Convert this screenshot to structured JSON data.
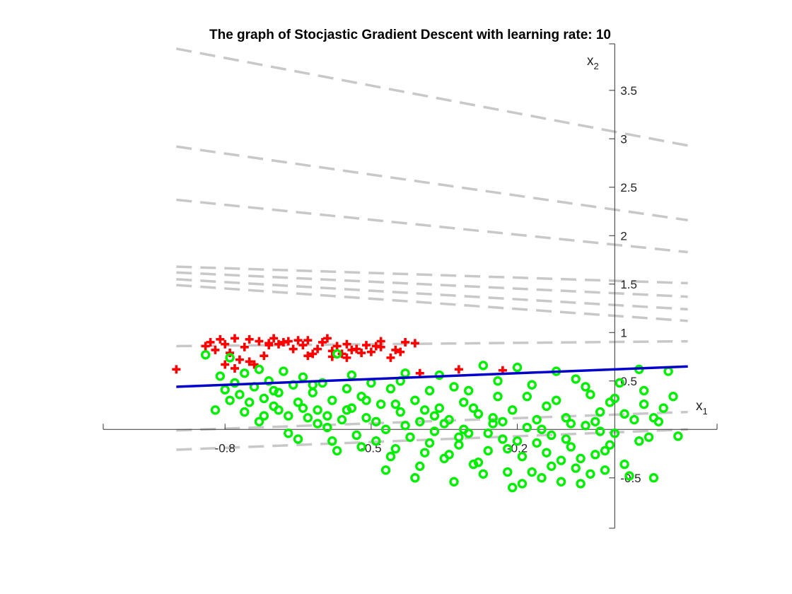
{
  "chart_data": {
    "type": "scatter",
    "title": "The graph of Stocjastic Gradient Descent with learning rate: 10",
    "xlabel": "x",
    "xlabel_sub": "1",
    "ylabel": "x",
    "ylabel_sub": "2",
    "xlim": [
      -1.05,
      0.21
    ],
    "ylim": [
      -1.02,
      3.98
    ],
    "x_ticks": [
      -0.8,
      -0.5,
      -0.2
    ],
    "x_tick_labels": [
      "-0.8",
      "-0.5",
      "-0.2"
    ],
    "y_ticks": [
      -0.5,
      0.5,
      1,
      1.5,
      2,
      2.5,
      3,
      3.5
    ],
    "y_tick_labels": [
      "-0.5",
      "0.5",
      "1",
      "1.5",
      "2",
      "2.5",
      "3",
      "3.5"
    ],
    "grid": false,
    "axes_origin": [
      0,
      0
    ],
    "colors": {
      "positive": "#ff0000",
      "negative": "#00ee00",
      "final_boundary": "#0000cc",
      "intermediate_boundaries": "#c8c8c8"
    },
    "intermediate_boundaries": [
      {
        "x": [
          -0.9,
          0.15
        ],
        "y": [
          3.93,
          2.93
        ]
      },
      {
        "x": [
          -0.9,
          0.15
        ],
        "y": [
          2.92,
          2.16
        ]
      },
      {
        "x": [
          -0.9,
          0.15
        ],
        "y": [
          2.37,
          1.83
        ]
      },
      {
        "x": [
          -0.9,
          0.15
        ],
        "y": [
          1.68,
          1.51
        ]
      },
      {
        "x": [
          -0.9,
          0.15
        ],
        "y": [
          1.62,
          1.37
        ]
      },
      {
        "x": [
          -0.9,
          0.15
        ],
        "y": [
          1.55,
          1.24
        ]
      },
      {
        "x": [
          -0.9,
          0.15
        ],
        "y": [
          1.49,
          1.12
        ]
      },
      {
        "x": [
          -0.9,
          0.15
        ],
        "y": [
          0.86,
          0.91
        ]
      },
      {
        "x": [
          -0.9,
          0.15
        ],
        "y": [
          -0.01,
          0.18
        ]
      },
      {
        "x": [
          -0.9,
          0.15
        ],
        "y": [
          -0.21,
          0.0
        ]
      }
    ],
    "final_boundary": {
      "x": [
        -0.9,
        0.15
      ],
      "y": [
        0.44,
        0.65
      ]
    },
    "series": [
      {
        "marker": "plus",
        "color": "#ff0000",
        "points": [
          [
            -0.9,
            0.62
          ],
          [
            -0.84,
            0.86
          ],
          [
            -0.83,
            0.9
          ],
          [
            -0.82,
            0.82
          ],
          [
            -0.81,
            0.93
          ],
          [
            -0.8,
            0.88
          ],
          [
            -0.79,
            0.79
          ],
          [
            -0.78,
            0.94
          ],
          [
            -0.77,
            0.72
          ],
          [
            -0.76,
            0.85
          ],
          [
            -0.75,
            0.93
          ],
          [
            -0.74,
            0.67
          ],
          [
            -0.73,
            0.91
          ],
          [
            -0.72,
            0.76
          ],
          [
            -0.71,
            0.87
          ],
          [
            -0.7,
            0.94
          ],
          [
            -0.69,
            0.88
          ],
          [
            -0.68,
            0.9
          ],
          [
            -0.67,
            0.91
          ],
          [
            -0.66,
            0.83
          ],
          [
            -0.65,
            0.92
          ],
          [
            -0.64,
            0.87
          ],
          [
            -0.63,
            0.92
          ],
          [
            -0.62,
            0.78
          ],
          [
            -0.61,
            0.83
          ],
          [
            -0.6,
            0.9
          ],
          [
            -0.59,
            0.94
          ],
          [
            -0.58,
            0.75
          ],
          [
            -0.57,
            0.86
          ],
          [
            -0.56,
            0.78
          ],
          [
            -0.55,
            0.88
          ],
          [
            -0.54,
            0.82
          ],
          [
            -0.53,
            0.83
          ],
          [
            -0.52,
            0.79
          ],
          [
            -0.51,
            0.87
          ],
          [
            -0.5,
            0.8
          ],
          [
            -0.49,
            0.86
          ],
          [
            -0.48,
            0.91
          ],
          [
            -0.46,
            0.74
          ],
          [
            -0.45,
            0.82
          ],
          [
            -0.43,
            0.9
          ],
          [
            -0.4,
            0.58
          ],
          [
            -0.32,
            0.62
          ],
          [
            -0.23,
            0.61
          ],
          [
            -0.8,
            0.67
          ],
          [
            -0.78,
            0.63
          ],
          [
            -0.75,
            0.7
          ],
          [
            -0.71,
            0.89
          ],
          [
            -0.63,
            0.76
          ],
          [
            -0.58,
            0.81
          ],
          [
            -0.55,
            0.74
          ],
          [
            -0.48,
            0.85
          ],
          [
            -0.44,
            0.8
          ],
          [
            -0.41,
            0.89
          ]
        ]
      },
      {
        "marker": "circle",
        "color": "#00ee00",
        "points": [
          [
            -0.84,
            0.77
          ],
          [
            -0.81,
            0.55
          ],
          [
            -0.8,
            0.41
          ],
          [
            -0.79,
            0.74
          ],
          [
            -0.78,
            0.48
          ],
          [
            -0.77,
            0.36
          ],
          [
            -0.76,
            0.58
          ],
          [
            -0.75,
            0.28
          ],
          [
            -0.74,
            0.44
          ],
          [
            -0.73,
            0.62
          ],
          [
            -0.72,
            0.32
          ],
          [
            -0.71,
            0.5
          ],
          [
            -0.7,
            0.24
          ],
          [
            -0.69,
            0.38
          ],
          [
            -0.68,
            0.6
          ],
          [
            -0.67,
            0.14
          ],
          [
            -0.66,
            0.46
          ],
          [
            -0.65,
            0.28
          ],
          [
            -0.64,
            0.54
          ],
          [
            -0.63,
            0.12
          ],
          [
            -0.62,
            0.38
          ],
          [
            -0.61,
            0.2
          ],
          [
            -0.6,
            0.48
          ],
          [
            -0.59,
            0.02
          ],
          [
            -0.58,
            0.3
          ],
          [
            -0.57,
            0.78
          ],
          [
            -0.56,
            0.1
          ],
          [
            -0.55,
            0.42
          ],
          [
            -0.54,
            0.22
          ],
          [
            -0.53,
            -0.06
          ],
          [
            -0.52,
            0.34
          ],
          [
            -0.51,
            0.12
          ],
          [
            -0.5,
            0.48
          ],
          [
            -0.49,
            -0.12
          ],
          [
            -0.48,
            0.26
          ],
          [
            -0.47,
            0.0
          ],
          [
            -0.46,
            0.42
          ],
          [
            -0.45,
            -0.2
          ],
          [
            -0.44,
            0.18
          ],
          [
            -0.43,
            0.58
          ],
          [
            -0.42,
            -0.08
          ],
          [
            -0.41,
            0.3
          ],
          [
            -0.4,
            0.08
          ],
          [
            -0.39,
            -0.24
          ],
          [
            -0.38,
            0.4
          ],
          [
            -0.37,
            -0.02
          ],
          [
            -0.36,
            0.22
          ],
          [
            -0.35,
            -0.3
          ],
          [
            -0.34,
            0.1
          ],
          [
            -0.33,
            0.44
          ],
          [
            -0.32,
            -0.16
          ],
          [
            -0.31,
            0.28
          ],
          [
            -0.3,
            -0.04
          ],
          [
            -0.29,
            -0.36
          ],
          [
            -0.28,
            0.16
          ],
          [
            -0.27,
            0.66
          ],
          [
            -0.26,
            -0.22
          ],
          [
            -0.25,
            0.06
          ],
          [
            -0.24,
            0.34
          ],
          [
            -0.23,
            -0.1
          ],
          [
            -0.22,
            -0.44
          ],
          [
            -0.21,
            0.2
          ],
          [
            -0.2,
            0.64
          ],
          [
            -0.19,
            -0.28
          ],
          [
            -0.18,
            0.02
          ],
          [
            -0.17,
            0.46
          ],
          [
            -0.16,
            -0.14
          ],
          [
            -0.15,
            -0.5
          ],
          [
            -0.14,
            0.24
          ],
          [
            -0.13,
            -0.06
          ],
          [
            -0.12,
            0.6
          ],
          [
            -0.11,
            -0.32
          ],
          [
            -0.1,
            0.12
          ],
          [
            -0.09,
            -0.18
          ],
          [
            -0.08,
            0.52
          ],
          [
            -0.07,
            -0.56
          ],
          [
            -0.06,
            0.04
          ],
          [
            -0.05,
            0.36
          ],
          [
            -0.04,
            -0.26
          ],
          [
            -0.03,
            0.18
          ],
          [
            -0.02,
            -0.42
          ],
          [
            -0.01,
            0.28
          ],
          [
            0.0,
            -0.04
          ],
          [
            0.01,
            0.48
          ],
          [
            0.02,
            0.16
          ],
          [
            0.03,
            -0.48
          ],
          [
            0.04,
            0.1
          ],
          [
            0.05,
            0.62
          ],
          [
            0.06,
            0.26
          ],
          [
            0.07,
            -0.08
          ],
          [
            0.08,
            -0.5
          ],
          [
            0.09,
            0.08
          ],
          [
            0.1,
            0.22
          ],
          [
            0.11,
            0.6
          ],
          [
            0.12,
            0.34
          ],
          [
            0.13,
            -0.07
          ],
          [
            -0.79,
            0.3
          ],
          [
            -0.76,
            0.18
          ],
          [
            -0.73,
            0.08
          ],
          [
            -0.7,
            0.4
          ],
          [
            -0.67,
            -0.04
          ],
          [
            -0.64,
            0.22
          ],
          [
            -0.61,
            0.06
          ],
          [
            -0.58,
            -0.12
          ],
          [
            -0.55,
            0.2
          ],
          [
            -0.52,
            -0.18
          ],
          [
            -0.49,
            0.08
          ],
          [
            -0.46,
            -0.28
          ],
          [
            -0.43,
            0.04
          ],
          [
            -0.4,
            -0.38
          ],
          [
            -0.37,
            0.14
          ],
          [
            -0.34,
            -0.26
          ],
          [
            -0.31,
            0.0
          ],
          [
            -0.28,
            -0.34
          ],
          [
            -0.25,
            0.12
          ],
          [
            -0.22,
            -0.2
          ],
          [
            -0.19,
            -0.56
          ],
          [
            -0.16,
            0.1
          ],
          [
            -0.13,
            -0.38
          ],
          [
            -0.1,
            -0.1
          ],
          [
            -0.07,
            -0.3
          ],
          [
            -0.04,
            0.08
          ],
          [
            -0.01,
            -0.16
          ],
          [
            0.02,
            -0.36
          ],
          [
            0.05,
            -0.12
          ],
          [
            0.08,
            0.12
          ],
          [
            -0.65,
            -0.1
          ],
          [
            -0.57,
            -0.22
          ],
          [
            -0.47,
            -0.42
          ],
          [
            -0.41,
            -0.5
          ],
          [
            -0.33,
            -0.54
          ],
          [
            -0.27,
            -0.46
          ],
          [
            -0.21,
            -0.6
          ],
          [
            -0.17,
            -0.44
          ],
          [
            -0.11,
            -0.54
          ],
          [
            -0.05,
            -0.46
          ],
          [
            -0.82,
            0.2
          ],
          [
            -0.72,
            0.14
          ],
          [
            -0.62,
            0.46
          ],
          [
            -0.54,
            0.56
          ],
          [
            -0.44,
            0.5
          ],
          [
            -0.36,
            0.56
          ],
          [
            -0.3,
            0.4
          ],
          [
            -0.24,
            0.5
          ],
          [
            -0.18,
            0.34
          ],
          [
            -0.12,
            0.3
          ],
          [
            -0.06,
            0.44
          ],
          [
            0.0,
            0.32
          ],
          [
            0.06,
            0.4
          ],
          [
            -0.69,
            0.2
          ],
          [
            -0.59,
            0.14
          ],
          [
            -0.51,
            0.3
          ],
          [
            -0.45,
            0.26
          ],
          [
            -0.39,
            0.2
          ],
          [
            -0.35,
            0.06
          ],
          [
            -0.29,
            0.22
          ],
          [
            -0.23,
            0.08
          ],
          [
            -0.15,
            0.0
          ],
          [
            -0.09,
            0.06
          ],
          [
            -0.03,
            -0.02
          ],
          [
            -0.38,
            -0.14
          ],
          [
            -0.32,
            -0.08
          ],
          [
            -0.26,
            -0.04
          ],
          [
            -0.2,
            -0.12
          ],
          [
            -0.14,
            -0.24
          ],
          [
            -0.08,
            -0.4
          ],
          [
            -0.02,
            -0.22
          ]
        ]
      }
    ]
  }
}
